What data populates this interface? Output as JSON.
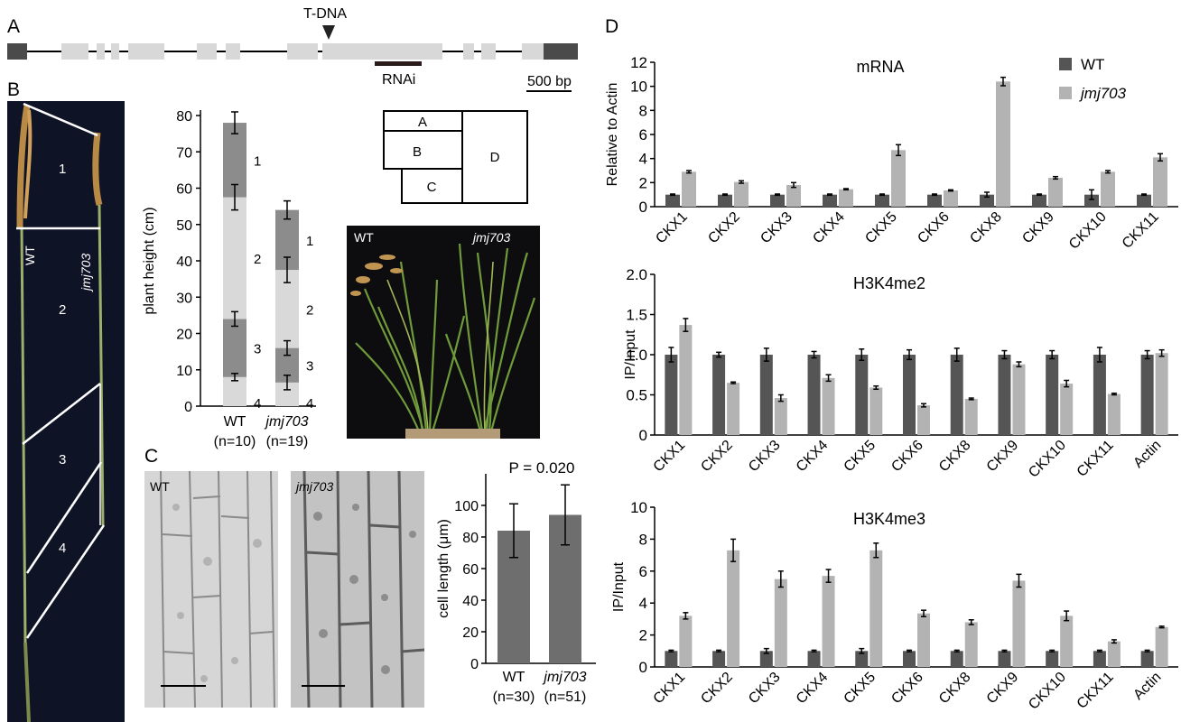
{
  "panel_labels": {
    "a": "A",
    "b": "B",
    "c": "C",
    "d": "D"
  },
  "gene_model": {
    "tdna_label": "T-DNA",
    "rnai_label": "RNAi",
    "scale_label": "500 bp"
  },
  "stem_photo": {
    "segments": [
      "1",
      "2",
      "3",
      "4"
    ],
    "wt_label": "WT",
    "mut_label": "jmj703"
  },
  "layout_key": {
    "boxes": [
      "A",
      "B",
      "C",
      "D"
    ]
  },
  "plant_photo": {
    "wt_label": "WT",
    "mut_label": "jmj703"
  },
  "cell_photos": {
    "wt_label": "WT",
    "mut_label": "jmj703"
  },
  "colors": {
    "dark_bar": "#555555",
    "light_bar": "#b3b3b3",
    "stack_dark": "#8c8c8c",
    "stack_light": "#d9d9d9"
  },
  "chart_data": [
    {
      "id": "plant_height",
      "type": "bar",
      "ylabel": "plant height (cm)",
      "ylim": [
        0,
        80
      ],
      "yticks": [
        "0",
        "10",
        "20",
        "30",
        "40",
        "50",
        "60",
        "70",
        "80"
      ],
      "categories": [
        "WT",
        "jmj703"
      ],
      "category_notes": [
        "(n=10)",
        "(n=19)"
      ],
      "segment_labels": [
        "1",
        "2",
        "3",
        "4"
      ],
      "stacks": [
        {
          "boundaries": [
            0,
            8,
            24,
            57.5,
            78
          ],
          "errors": [
            1,
            2,
            3.5,
            3
          ]
        },
        {
          "boundaries": [
            0,
            6.5,
            16,
            37.5,
            54
          ],
          "errors": [
            2,
            2,
            3.5,
            2.5
          ]
        }
      ]
    },
    {
      "id": "cell_length",
      "type": "bar",
      "title": "P = 0.020",
      "ylabel": "cell length (μm)",
      "ylim": [
        0,
        120
      ],
      "yticks": [
        "0",
        "20",
        "40",
        "60",
        "80",
        "100"
      ],
      "categories": [
        "WT",
        "jmj703"
      ],
      "category_notes": [
        "(n=30)",
        "(n=51)"
      ],
      "values": [
        84,
        94
      ],
      "errors": [
        17,
        19
      ]
    },
    {
      "id": "mrna",
      "type": "bar",
      "title": "mRNA",
      "ylabel": "Relative to Actin",
      "ylim": [
        0,
        12
      ],
      "yticks": [
        "0",
        "2",
        "4",
        "6",
        "8",
        "10",
        "12"
      ],
      "categories": [
        "CKX1",
        "CKX2",
        "CKX3",
        "CKX4",
        "CKX5",
        "CKX6",
        "CKX8",
        "CKX9",
        "CKX10",
        "CKX11"
      ],
      "legend": [
        "WT",
        "jmj703"
      ],
      "series": [
        {
          "name": "WT",
          "values": [
            1,
            1,
            1,
            1,
            1,
            1,
            1,
            1,
            1,
            1
          ],
          "errors": [
            0.05,
            0.05,
            0.05,
            0.05,
            0.05,
            0.05,
            0.2,
            0.05,
            0.4,
            0.05
          ]
        },
        {
          "name": "jmj703",
          "values": [
            2.9,
            2.05,
            1.8,
            1.45,
            4.7,
            1.35,
            10.4,
            2.4,
            2.9,
            4.1
          ],
          "errors": [
            0.1,
            0.1,
            0.2,
            0.05,
            0.45,
            0.05,
            0.35,
            0.1,
            0.1,
            0.3
          ]
        }
      ]
    },
    {
      "id": "h3k4me2",
      "type": "bar",
      "title": "H3K4me2",
      "ylabel": "IP/Input",
      "ylim": [
        0,
        2.0
      ],
      "yticks": [
        "0",
        "0.5",
        "1.0",
        "1.5",
        "2.0"
      ],
      "categories": [
        "CKX1",
        "CKX2",
        "CKX3",
        "CKX4",
        "CKX5",
        "CKX6",
        "CKX8",
        "CKX9",
        "CKX10",
        "CKX11",
        "Actin"
      ],
      "series": [
        {
          "name": "WT",
          "values": [
            1.0,
            1.0,
            1.0,
            1.0,
            1.0,
            1.0,
            1.0,
            1.0,
            1.0,
            1.0,
            1.0
          ],
          "errors": [
            0.09,
            0.03,
            0.08,
            0.04,
            0.07,
            0.06,
            0.08,
            0.05,
            0.05,
            0.09,
            0.05
          ]
        },
        {
          "name": "jmj703",
          "values": [
            1.37,
            0.65,
            0.46,
            0.71,
            0.59,
            0.37,
            0.45,
            0.88,
            0.64,
            0.51,
            1.02
          ],
          "errors": [
            0.08,
            0.01,
            0.04,
            0.04,
            0.02,
            0.02,
            0.01,
            0.03,
            0.04,
            0.01,
            0.04
          ]
        }
      ]
    },
    {
      "id": "h3k4me3",
      "type": "bar",
      "title": "H3K4me3",
      "ylabel": "IP/Input",
      "ylim": [
        0,
        10
      ],
      "yticks": [
        "0",
        "2",
        "4",
        "6",
        "8",
        "10"
      ],
      "categories": [
        "CKX1",
        "CKX2",
        "CKX3",
        "CKX4",
        "CKX5",
        "CKX6",
        "CKX8",
        "CKX9",
        "CKX10",
        "CKX11",
        "Actin"
      ],
      "series": [
        {
          "name": "WT",
          "values": [
            1,
            1,
            1,
            1,
            1,
            1,
            1,
            1,
            1,
            1,
            1
          ],
          "errors": [
            0.05,
            0.05,
            0.15,
            0.05,
            0.15,
            0.05,
            0.05,
            0.05,
            0.05,
            0.05,
            0.05
          ]
        },
        {
          "name": "jmj703",
          "values": [
            3.2,
            7.3,
            5.5,
            5.7,
            7.3,
            3.35,
            2.8,
            5.4,
            3.2,
            1.6,
            2.5
          ],
          "errors": [
            0.2,
            0.7,
            0.5,
            0.4,
            0.45,
            0.2,
            0.15,
            0.4,
            0.3,
            0.1,
            0.05
          ]
        }
      ]
    }
  ]
}
